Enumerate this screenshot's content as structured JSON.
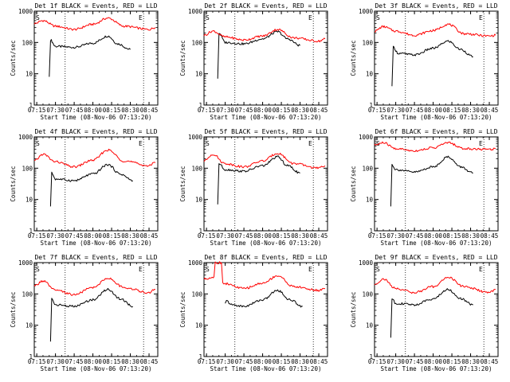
{
  "colors": {
    "events": "#000000",
    "lld": "#ff0000",
    "background": "#ffffff"
  },
  "chart_data": [
    {
      "type": "line",
      "title": "Det 1f BLACK = Events, RED = LLD",
      "xlabel": "Start Time (08-Nov-06 07:13:20)",
      "ylabel": "Counts/sec",
      "x_ticks": [
        "07:15",
        "07:30",
        "07:45",
        "08:00",
        "08:15",
        "08:30",
        "08:45"
      ],
      "y_ticks": [
        "1",
        "10",
        "100",
        "1000"
      ],
      "ylim": [
        1,
        1000
      ],
      "yscale": "log",
      "markers": [
        "S",
        "E"
      ],
      "series": [
        {
          "name": "Events",
          "x": [
            "07:25",
            "07:26",
            "07:30",
            "07:45",
            "08:00",
            "08:12",
            "08:20",
            "08:30"
          ],
          "values": [
            8,
            120,
            75,
            70,
            95,
            160,
            90,
            60
          ]
        },
        {
          "name": "LLD",
          "x": [
            "07:13",
            "07:20",
            "07:30",
            "07:45",
            "08:00",
            "08:12",
            "08:25",
            "08:45",
            "08:50"
          ],
          "values": [
            400,
            500,
            330,
            260,
            380,
            600,
            330,
            260,
            300
          ]
        }
      ]
    },
    {
      "type": "line",
      "title": "Det 2f BLACK = Events, RED = LLD",
      "xlabel": "Start Time (08-Nov-06 07:13:20)",
      "ylabel": "Counts/sec",
      "x_ticks": [
        "07:15",
        "07:30",
        "07:45",
        "08:00",
        "08:15",
        "08:30",
        "08:45"
      ],
      "y_ticks": [
        "1",
        "10",
        "100",
        "1000"
      ],
      "ylim": [
        1,
        1000
      ],
      "yscale": "log",
      "markers": [
        "S",
        "E"
      ],
      "series": [
        {
          "name": "Events",
          "x": [
            "07:24",
            "07:25",
            "07:30",
            "07:45",
            "08:00",
            "08:12",
            "08:20",
            "08:30"
          ],
          "values": [
            7,
            200,
            100,
            90,
            130,
            220,
            130,
            80
          ]
        },
        {
          "name": "LLD",
          "x": [
            "07:13",
            "07:20",
            "07:30",
            "07:45",
            "08:00",
            "08:12",
            "08:25",
            "08:45",
            "08:50"
          ],
          "values": [
            170,
            230,
            150,
            120,
            160,
            260,
            140,
            110,
            130
          ]
        }
      ]
    },
    {
      "type": "line",
      "title": "Det 3f BLACK = Events, RED = LLD",
      "xlabel": "Start Time (08-Nov-06 07:13:20)",
      "ylabel": "Counts/sec",
      "x_ticks": [
        "07:15",
        "07:30",
        "07:45",
        "08:00",
        "08:15",
        "08:30",
        "08:45"
      ],
      "y_ticks": [
        "1",
        "10",
        "100",
        "1000"
      ],
      "ylim": [
        1,
        1000
      ],
      "yscale": "log",
      "markers": [
        "S",
        "E"
      ],
      "series": [
        {
          "name": "Events",
          "x": [
            "07:27",
            "07:28",
            "07:32",
            "07:45",
            "08:00",
            "08:12",
            "08:22",
            "08:32"
          ],
          "values": [
            4,
            70,
            45,
            40,
            65,
            110,
            60,
            35
          ]
        },
        {
          "name": "LLD",
          "x": [
            "07:13",
            "07:20",
            "07:30",
            "07:45",
            "08:00",
            "08:12",
            "08:25",
            "08:45",
            "08:50"
          ],
          "values": [
            230,
            320,
            230,
            170,
            240,
            380,
            190,
            160,
            170
          ]
        }
      ]
    },
    {
      "type": "line",
      "title": "Det 4f BLACK = Events, RED = LLD",
      "xlabel": "Start Time (08-Nov-06 07:13:20)",
      "ylabel": "Counts/sec",
      "x_ticks": [
        "07:15",
        "07:30",
        "07:45",
        "08:00",
        "08:15",
        "08:30",
        "08:45"
      ],
      "y_ticks": [
        "1",
        "10",
        "100",
        "1000"
      ],
      "ylim": [
        1,
        1000
      ],
      "yscale": "log",
      "markers": [
        "S",
        "E"
      ],
      "series": [
        {
          "name": "Events",
          "x": [
            "07:26",
            "07:27",
            "07:30",
            "07:45",
            "08:00",
            "08:12",
            "08:22",
            "08:32"
          ],
          "values": [
            6,
            70,
            45,
            40,
            65,
            130,
            65,
            40
          ]
        },
        {
          "name": "LLD",
          "x": [
            "07:13",
            "07:20",
            "07:30",
            "07:45",
            "08:00",
            "08:12",
            "08:25",
            "08:45",
            "08:50"
          ],
          "values": [
            170,
            280,
            160,
            110,
            180,
            380,
            170,
            120,
            150
          ]
        }
      ]
    },
    {
      "type": "line",
      "title": "Det 5f BLACK = Events, RED = LLD",
      "xlabel": "Start Time (08-Nov-06 07:13:20)",
      "ylabel": "Counts/sec",
      "x_ticks": [
        "07:15",
        "07:30",
        "07:45",
        "08:00",
        "08:15",
        "08:30",
        "08:45"
      ],
      "y_ticks": [
        "1",
        "10",
        "100",
        "1000"
      ],
      "ylim": [
        1,
        1000
      ],
      "yscale": "log",
      "markers": [
        "S",
        "E"
      ],
      "series": [
        {
          "name": "Events",
          "x": [
            "07:24",
            "07:25",
            "07:30",
            "07:45",
            "08:00",
            "08:12",
            "08:20",
            "08:30"
          ],
          "values": [
            7,
            140,
            90,
            80,
            120,
            230,
            120,
            70
          ]
        },
        {
          "name": "LLD",
          "x": [
            "07:13",
            "07:20",
            "07:30",
            "07:45",
            "08:00",
            "08:12",
            "08:25",
            "08:45",
            "08:50"
          ],
          "values": [
            170,
            280,
            140,
            110,
            170,
            300,
            140,
            100,
            120
          ]
        }
      ]
    },
    {
      "type": "line",
      "title": "Det 6f BLACK = Events, RED = LLD",
      "xlabel": "Start Time (08-Nov-06 07:13:20)",
      "ylabel": "Counts/sec",
      "x_ticks": [
        "07:15",
        "07:30",
        "07:45",
        "08:00",
        "08:15",
        "08:30",
        "08:45"
      ],
      "y_ticks": [
        "1",
        "10",
        "100",
        "1000"
      ],
      "ylim": [
        1,
        1000
      ],
      "yscale": "log",
      "markers": [
        "S",
        "E"
      ],
      "series": [
        {
          "name": "Events",
          "x": [
            "07:26",
            "07:27",
            "07:30",
            "07:45",
            "08:00",
            "08:12",
            "08:22",
            "08:32"
          ],
          "values": [
            6,
            130,
            90,
            75,
            110,
            230,
            110,
            70
          ]
        },
        {
          "name": "LLD",
          "x": [
            "07:13",
            "07:20",
            "07:30",
            "07:45",
            "08:00",
            "08:12",
            "08:25",
            "08:45",
            "08:50"
          ],
          "values": [
            550,
            650,
            420,
            360,
            450,
            650,
            420,
            400,
            420
          ]
        }
      ]
    },
    {
      "type": "line",
      "title": "Det 7f BLACK = Events, RED = LLD",
      "xlabel": "Start Time (08-Nov-06 07:13:20)",
      "ylabel": "Counts/sec",
      "x_ticks": [
        "07:15",
        "07:30",
        "07:45",
        "08:00",
        "08:15",
        "08:30",
        "08:45"
      ],
      "y_ticks": [
        "1",
        "10",
        "100",
        "1000"
      ],
      "ylim": [
        1,
        1000
      ],
      "yscale": "log",
      "markers": [
        "S",
        "E"
      ],
      "series": [
        {
          "name": "Events",
          "x": [
            "07:26",
            "07:27",
            "07:30",
            "07:45",
            "08:00",
            "08:12",
            "08:22",
            "08:32"
          ],
          "values": [
            3,
            70,
            45,
            40,
            65,
            140,
            70,
            40
          ]
        },
        {
          "name": "LLD",
          "x": [
            "07:13",
            "07:20",
            "07:30",
            "07:45",
            "08:00",
            "08:12",
            "08:25",
            "08:45",
            "08:50"
          ],
          "values": [
            180,
            260,
            130,
            95,
            160,
            320,
            160,
            110,
            140
          ]
        }
      ]
    },
    {
      "type": "line",
      "title": "Det 8f BLACK = Events, RED = LLD",
      "xlabel": "Start Time (08-Nov-06 07:13:20)",
      "ylabel": "Counts/sec",
      "x_ticks": [
        "07:15",
        "07:30",
        "07:45",
        "08:00",
        "08:15",
        "08:30",
        "08:45"
      ],
      "y_ticks": [
        "1",
        "10",
        "100",
        "1000"
      ],
      "ylim": [
        1,
        1000
      ],
      "yscale": "log",
      "markers": [
        "S",
        "E"
      ],
      "series": [
        {
          "name": "Events",
          "x": [
            "07:30",
            "07:31",
            "07:35",
            "07:45",
            "08:00",
            "08:12",
            "08:22",
            "08:32"
          ],
          "values": [
            50,
            60,
            45,
            40,
            65,
            130,
            65,
            40
          ]
        },
        {
          "name": "LLD",
          "x": [
            "07:13",
            "07:21",
            "07:22",
            "07:27",
            "07:28",
            "07:45",
            "08:00",
            "08:12",
            "08:25",
            "08:45",
            "08:50"
          ],
          "values": [
            300,
            350,
            1000,
            1000,
            220,
            150,
            220,
            380,
            170,
            130,
            150
          ]
        }
      ]
    },
    {
      "type": "line",
      "title": "Det 9f BLACK = Events, RED = LLD",
      "xlabel": "Start Time (08-Nov-06 07:13:20)",
      "ylabel": "Counts/sec",
      "x_ticks": [
        "07:15",
        "07:30",
        "07:45",
        "08:00",
        "08:15",
        "08:30",
        "08:45"
      ],
      "y_ticks": [
        "1",
        "10",
        "100",
        "1000"
      ],
      "ylim": [
        1,
        1000
      ],
      "yscale": "log",
      "markers": [
        "S",
        "E"
      ],
      "series": [
        {
          "name": "Events",
          "x": [
            "07:26",
            "07:27",
            "07:30",
            "07:45",
            "08:00",
            "08:12",
            "08:22",
            "08:32"
          ],
          "values": [
            4,
            70,
            50,
            45,
            70,
            140,
            70,
            45
          ]
        },
        {
          "name": "LLD",
          "x": [
            "07:13",
            "07:20",
            "07:30",
            "07:45",
            "08:00",
            "08:12",
            "08:25",
            "08:45",
            "08:50"
          ],
          "values": [
            200,
            300,
            150,
            110,
            170,
            340,
            170,
            110,
            140
          ]
        }
      ]
    }
  ]
}
